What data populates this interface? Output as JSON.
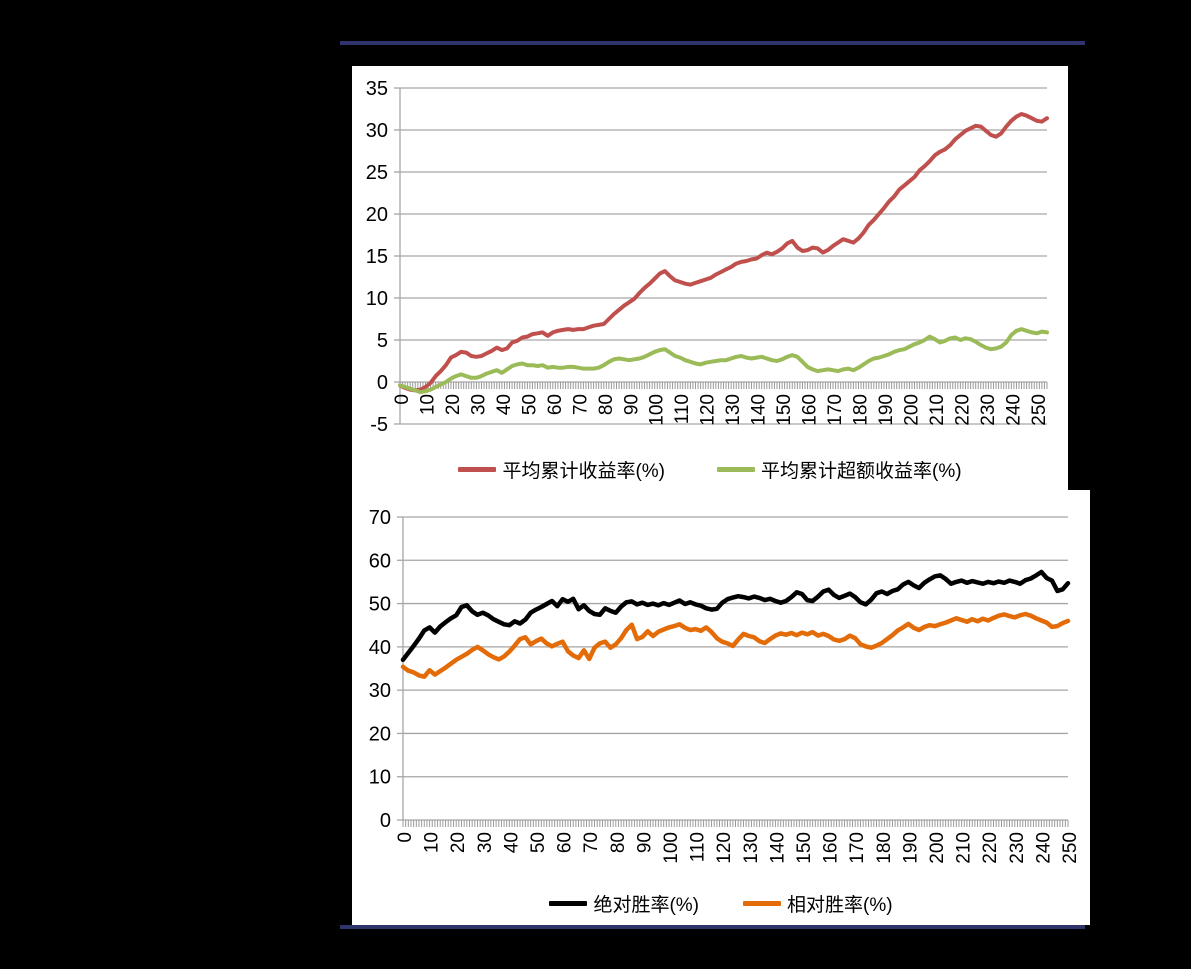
{
  "page": {
    "background_color": "#000000",
    "panel_color": "#ffffff",
    "rule_color": "#30346c",
    "grid_color": "#a6a6a6",
    "axis_text_color": "#000000"
  },
  "chart_data": [
    {
      "type": "line",
      "title": "",
      "xlabel": "",
      "ylabel": "",
      "grid": true,
      "legend_position": "bottom",
      "ylim": [
        -5,
        35
      ],
      "y_tick_interval": 5,
      "y_tick_labels": [
        "35",
        "30",
        "25",
        "20",
        "15",
        "10",
        "5",
        "0",
        "-5"
      ],
      "x_start": 0,
      "x_step": 2,
      "x_axis_max": 254,
      "x_tick_interval": 10,
      "x_tick_labels": [
        "0",
        "10",
        "20",
        "30",
        "40",
        "50",
        "60",
        "70",
        "80",
        "90",
        "100",
        "110",
        "120",
        "130",
        "140",
        "150",
        "160",
        "170",
        "180",
        "190",
        "200",
        "210",
        "220",
        "230",
        "240",
        "250"
      ],
      "series": [
        {
          "name": "平均累计收益率(%)",
          "color": "#c0504d",
          "stroke_width": 4,
          "values": [
            -0.4,
            -0.7,
            -0.9,
            -1.0,
            -0.9,
            -0.6,
            -0.1,
            0.7,
            1.3,
            2.0,
            2.9,
            3.2,
            3.6,
            3.5,
            3.1,
            3.0,
            3.1,
            3.4,
            3.7,
            4.1,
            3.8,
            4.0,
            4.7,
            4.9,
            5.3,
            5.4,
            5.7,
            5.8,
            5.9,
            5.5,
            5.9,
            6.1,
            6.2,
            6.3,
            6.2,
            6.3,
            6.3,
            6.5,
            6.7,
            6.8,
            6.9,
            7.5,
            8.1,
            8.6,
            9.1,
            9.5,
            9.9,
            10.6,
            11.2,
            11.7,
            12.3,
            12.9,
            13.2,
            12.6,
            12.1,
            11.9,
            11.7,
            11.6,
            11.8,
            12.0,
            12.2,
            12.4,
            12.8,
            13.1,
            13.4,
            13.7,
            14.1,
            14.3,
            14.4,
            14.6,
            14.7,
            15.1,
            15.4,
            15.2,
            15.5,
            15.9,
            16.5,
            16.8,
            16.0,
            15.6,
            15.7,
            16.0,
            15.9,
            15.4,
            15.7,
            16.2,
            16.6,
            17.0,
            16.8,
            16.6,
            17.1,
            17.8,
            18.7,
            19.3,
            20.0,
            20.7,
            21.5,
            22.1,
            22.9,
            23.4,
            23.9,
            24.4,
            25.2,
            25.7,
            26.3,
            27.0,
            27.4,
            27.7,
            28.2,
            28.9,
            29.4,
            29.9,
            30.2,
            30.5,
            30.4,
            29.9,
            29.4,
            29.2,
            29.6,
            30.4,
            31.1,
            31.6,
            31.9,
            31.7,
            31.4,
            31.1,
            31.0,
            31.4
          ]
        },
        {
          "name": "平均累计超额收益率(%)",
          "color": "#9bbb59",
          "stroke_width": 4,
          "values": [
            -0.4,
            -0.6,
            -0.8,
            -1.0,
            -1.2,
            -1.1,
            -0.9,
            -0.6,
            -0.3,
            0.0,
            0.4,
            0.7,
            0.9,
            0.7,
            0.5,
            0.5,
            0.7,
            1.0,
            1.2,
            1.4,
            1.1,
            1.5,
            1.9,
            2.1,
            2.2,
            2.0,
            2.0,
            1.9,
            2.0,
            1.7,
            1.8,
            1.7,
            1.7,
            1.8,
            1.8,
            1.7,
            1.6,
            1.6,
            1.6,
            1.7,
            2.0,
            2.4,
            2.7,
            2.8,
            2.7,
            2.6,
            2.7,
            2.8,
            3.0,
            3.3,
            3.6,
            3.8,
            3.9,
            3.5,
            3.1,
            2.9,
            2.6,
            2.4,
            2.2,
            2.1,
            2.3,
            2.4,
            2.5,
            2.6,
            2.6,
            2.8,
            3.0,
            3.1,
            2.9,
            2.8,
            2.9,
            3.0,
            2.8,
            2.6,
            2.5,
            2.7,
            3.0,
            3.2,
            3.0,
            2.4,
            1.8,
            1.5,
            1.3,
            1.4,
            1.5,
            1.4,
            1.3,
            1.5,
            1.6,
            1.4,
            1.7,
            2.1,
            2.5,
            2.8,
            2.9,
            3.1,
            3.3,
            3.6,
            3.8,
            3.9,
            4.2,
            4.5,
            4.7,
            5.0,
            5.4,
            5.1,
            4.7,
            4.9,
            5.2,
            5.3,
            5.0,
            5.2,
            5.1,
            4.8,
            4.4,
            4.1,
            3.9,
            4.0,
            4.2,
            4.7,
            5.6,
            6.1,
            6.3,
            6.1,
            5.9,
            5.8,
            6.0,
            5.9
          ]
        }
      ]
    },
    {
      "type": "line",
      "title": "",
      "xlabel": "",
      "ylabel": "",
      "grid": true,
      "legend_position": "bottom",
      "ylim": [
        0,
        70
      ],
      "y_tick_interval": 10,
      "y_tick_labels": [
        "70",
        "60",
        "50",
        "40",
        "30",
        "20",
        "10",
        "0"
      ],
      "x_start": 0,
      "x_step": 2,
      "x_axis_max": 250,
      "x_tick_interval": 10,
      "x_tick_labels": [
        "0",
        "10",
        "20",
        "30",
        "40",
        "50",
        "60",
        "70",
        "80",
        "90",
        "100",
        "110",
        "120",
        "130",
        "140",
        "150",
        "160",
        "170",
        "180",
        "190",
        "200",
        "210",
        "220",
        "230",
        "240",
        "250"
      ],
      "series": [
        {
          "name": "绝对胜率(%)",
          "color": "#000000",
          "stroke_width": 4.5,
          "values": [
            37.0,
            38.6,
            40.2,
            41.9,
            43.8,
            44.5,
            43.3,
            44.7,
            45.7,
            46.6,
            47.3,
            49.2,
            49.6,
            48.2,
            47.4,
            47.9,
            47.3,
            46.4,
            45.8,
            45.2,
            45.0,
            45.9,
            45.4,
            46.3,
            47.9,
            48.6,
            49.2,
            49.9,
            50.6,
            49.4,
            51.0,
            50.4,
            51.1,
            48.7,
            49.6,
            48.3,
            47.6,
            47.4,
            48.9,
            48.3,
            47.9,
            49.3,
            50.3,
            50.5,
            49.8,
            50.2,
            49.7,
            50.0,
            49.6,
            50.1,
            49.7,
            50.2,
            50.7,
            49.9,
            50.3,
            49.8,
            49.5,
            48.9,
            48.6,
            48.8,
            50.2,
            51.0,
            51.4,
            51.7,
            51.5,
            51.2,
            51.6,
            51.3,
            50.8,
            51.1,
            50.6,
            50.2,
            50.6,
            51.5,
            52.6,
            52.2,
            50.8,
            50.6,
            51.6,
            52.8,
            53.2,
            52.0,
            51.3,
            51.8,
            52.3,
            51.5,
            50.3,
            49.8,
            50.9,
            52.4,
            52.8,
            52.2,
            52.9,
            53.3,
            54.4,
            55.0,
            54.2,
            53.6,
            54.8,
            55.6,
            56.3,
            56.5,
            55.7,
            54.6,
            55.0,
            55.3,
            54.8,
            55.2,
            54.9,
            54.6,
            55.0,
            54.7,
            55.1,
            54.8,
            55.3,
            55.0,
            54.6,
            55.4,
            55.8,
            56.5,
            57.3,
            55.9,
            55.3,
            52.9,
            53.3,
            54.7
          ]
        },
        {
          "name": "相对胜率(%)",
          "color": "#e36c09",
          "stroke_width": 4.5,
          "values": [
            35.4,
            34.5,
            34.1,
            33.4,
            33.1,
            34.6,
            33.6,
            34.4,
            35.2,
            36.1,
            37.0,
            37.7,
            38.4,
            39.3,
            40.0,
            39.2,
            38.3,
            37.6,
            37.1,
            37.8,
            38.9,
            40.3,
            41.8,
            42.2,
            40.6,
            41.3,
            41.9,
            40.8,
            40.1,
            40.7,
            41.2,
            39.0,
            38.0,
            37.4,
            39.2,
            37.2,
            39.8,
            40.8,
            41.2,
            39.8,
            40.6,
            42.0,
            43.9,
            45.1,
            41.8,
            42.3,
            43.6,
            42.5,
            43.5,
            44.0,
            44.5,
            44.8,
            45.2,
            44.4,
            43.9,
            44.1,
            43.7,
            44.5,
            43.4,
            42.0,
            41.2,
            40.8,
            40.2,
            41.7,
            43.0,
            42.5,
            42.2,
            41.3,
            40.9,
            41.8,
            42.6,
            43.1,
            42.8,
            43.2,
            42.7,
            43.3,
            42.9,
            43.4,
            42.6,
            43.0,
            42.5,
            41.7,
            41.4,
            41.8,
            42.6,
            42.0,
            40.6,
            40.1,
            39.8,
            40.3,
            40.9,
            41.8,
            42.7,
            43.8,
            44.5,
            45.3,
            44.4,
            43.9,
            44.6,
            45.0,
            44.8,
            45.2,
            45.6,
            46.1,
            46.6,
            46.2,
            45.8,
            46.4,
            45.9,
            46.5,
            46.1,
            46.7,
            47.2,
            47.5,
            47.1,
            46.8,
            47.3,
            47.6,
            47.2,
            46.6,
            46.1,
            45.6,
            44.6,
            44.8,
            45.5,
            46.0
          ]
        }
      ]
    }
  ]
}
